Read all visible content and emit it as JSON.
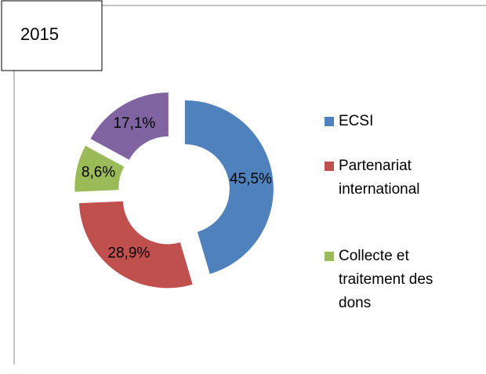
{
  "chart_data": {
    "type": "donut",
    "title": "2015",
    "categories": [
      "ECSI",
      "Partenariat international",
      "Collecte et traitement des dons",
      null
    ],
    "values": [
      45.5,
      28.9,
      8.6,
      17.1
    ],
    "value_labels": [
      "45,5%",
      "28,9%",
      "8,6%",
      "17,1%"
    ],
    "colors": [
      "#4f81bd",
      "#c0504d",
      "#9bbb59",
      "#8064a2"
    ],
    "exploded": true,
    "legend": "right"
  }
}
